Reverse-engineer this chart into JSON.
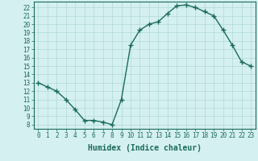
{
  "x": [
    0,
    1,
    2,
    3,
    4,
    5,
    6,
    7,
    8,
    9,
    10,
    11,
    12,
    13,
    14,
    15,
    16,
    17,
    18,
    19,
    20,
    21,
    22,
    23
  ],
  "y": [
    13.0,
    12.5,
    12.0,
    11.0,
    9.8,
    8.5,
    8.5,
    8.3,
    8.0,
    11.0,
    17.5,
    19.3,
    20.0,
    20.3,
    21.3,
    22.2,
    22.3,
    22.0,
    21.5,
    21.0,
    19.3,
    17.5,
    15.5,
    15.0
  ],
  "line_color": "#1a6b5a",
  "marker": "+",
  "marker_size": 4,
  "bg_color": "#d5f0f0",
  "grid_color": "#b0d8d8",
  "xlabel": "Humidex (Indice chaleur)",
  "xlim": [
    -0.5,
    23.5
  ],
  "ylim": [
    7.5,
    22.7
  ],
  "xticks": [
    0,
    1,
    2,
    3,
    4,
    5,
    6,
    7,
    8,
    9,
    10,
    11,
    12,
    13,
    14,
    15,
    16,
    17,
    18,
    19,
    20,
    21,
    22,
    23
  ],
  "yticks": [
    8,
    9,
    10,
    11,
    12,
    13,
    14,
    15,
    16,
    17,
    18,
    19,
    20,
    21,
    22
  ],
  "tick_color": "#1a6b5a",
  "tick_fontsize": 5.5,
  "xlabel_fontsize": 7,
  "linewidth": 1.0
}
